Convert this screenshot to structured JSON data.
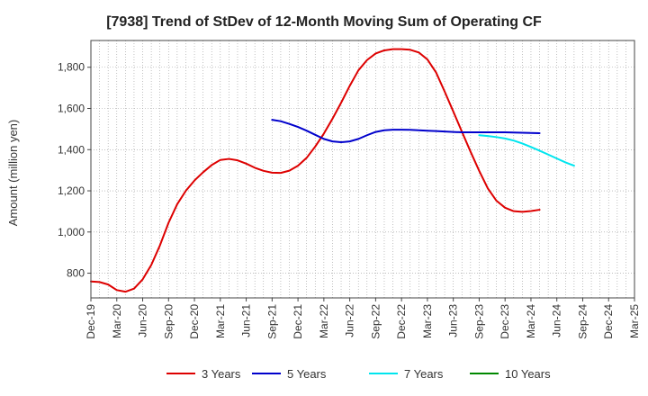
{
  "chart_data": {
    "type": "line",
    "title": "[7938]  Trend of StDev of 12-Month Moving Sum of Operating CF",
    "xlabel": "",
    "ylabel": "Amount (million yen)",
    "ylim": [
      680,
      1930
    ],
    "yticks": [
      800,
      1000,
      1200,
      1400,
      1600,
      1800
    ],
    "ytick_labels": [
      "800",
      "1,000",
      "1,200",
      "1,400",
      "1,600",
      "1,800"
    ],
    "x_ticks": [
      "Dec-19",
      "Mar-20",
      "Jun-20",
      "Sep-20",
      "Dec-20",
      "Mar-21",
      "Jun-21",
      "Sep-21",
      "Dec-21",
      "Mar-22",
      "Jun-22",
      "Sep-22",
      "Dec-22",
      "Mar-23",
      "Jun-23",
      "Sep-23",
      "Dec-23",
      "Mar-24",
      "Jun-24",
      "Sep-24",
      "Dec-24",
      "Mar-25"
    ],
    "grid": true,
    "legend_position": "bottom",
    "series": [
      {
        "name": "3 Years",
        "color": "#dd0000",
        "start_index": 0,
        "values": [
          760,
          757,
          745,
          718,
          710,
          725,
          770,
          840,
          935,
          1045,
          1135,
          1200,
          1250,
          1290,
          1325,
          1350,
          1355,
          1348,
          1332,
          1312,
          1297,
          1288,
          1287,
          1298,
          1322,
          1360,
          1415,
          1478,
          1550,
          1628,
          1710,
          1785,
          1835,
          1867,
          1882,
          1888,
          1888,
          1885,
          1872,
          1838,
          1775,
          1682,
          1585,
          1487,
          1390,
          1297,
          1212,
          1152,
          1118,
          1101,
          1098,
          1102,
          1108
        ]
      },
      {
        "name": "5 Years",
        "color": "#0000cc",
        "start_index": 21,
        "values": [
          1545,
          1538,
          1525,
          1510,
          1492,
          1472,
          1452,
          1440,
          1436,
          1440,
          1452,
          1470,
          1486,
          1494,
          1497,
          1497,
          1496,
          1494,
          1492,
          1490,
          1488,
          1486,
          1484,
          1484,
          1484,
          1484,
          1484,
          1484,
          1483,
          1482,
          1481,
          1480
        ]
      },
      {
        "name": "7 Years",
        "color": "#00e5ee",
        "start_index": 45,
        "values": [
          1470,
          1466,
          1461,
          1454,
          1444,
          1430,
          1413,
          1395,
          1376,
          1357,
          1338,
          1322
        ]
      },
      {
        "name": "10 Years",
        "color": "#008800",
        "start_index": 0,
        "values": []
      }
    ]
  }
}
